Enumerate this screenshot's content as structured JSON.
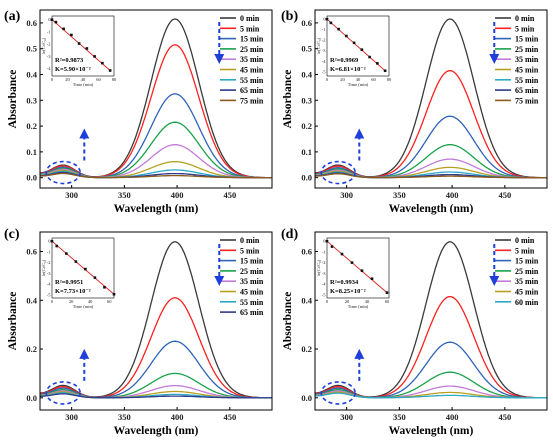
{
  "chart_data": [
    {
      "panel": "(a)",
      "type": "line",
      "xlabel": "Wavelength (nm)",
      "ylabel": "Absorbance",
      "xlim": [
        270,
        490
      ],
      "ylim": [
        -0.04,
        0.65
      ],
      "xticks": [
        300,
        350,
        400,
        450
      ],
      "yticks": [
        0.0,
        0.1,
        0.2,
        0.3,
        0.4,
        0.5,
        0.6
      ],
      "series": [
        {
          "name": "0 min",
          "color": "#3a3a3a",
          "peak": 0.615,
          "shoulder": 0.048
        },
        {
          "name": "5 min",
          "color": "#ff2020",
          "peak": 0.515,
          "shoulder": 0.045
        },
        {
          "name": "15 min",
          "color": "#2f63b8",
          "peak": 0.325,
          "shoulder": 0.04
        },
        {
          "name": "25 min",
          "color": "#19a14a",
          "peak": 0.215,
          "shoulder": 0.036
        },
        {
          "name": "35 min",
          "color": "#c37bd9",
          "peak": 0.128,
          "shoulder": 0.032
        },
        {
          "name": "45 min",
          "color": "#b8a020",
          "peak": 0.062,
          "shoulder": 0.028
        },
        {
          "name": "55 min",
          "color": "#2aa9c8",
          "peak": 0.03,
          "shoulder": 0.024
        },
        {
          "name": "65 min",
          "color": "#2e3a8a",
          "peak": 0.016,
          "shoulder": 0.02
        },
        {
          "name": "75 min",
          "color": "#8a5a1e",
          "peak": 0.008,
          "shoulder": 0.016
        }
      ],
      "inset": {
        "ylabel": "ln(Cₜ/C₀)",
        "xlabel": "Time (min)",
        "xticks": [
          0,
          20,
          40,
          60,
          80
        ],
        "xlim": [
          0,
          80
        ],
        "yticks": [
          0,
          -1,
          -2,
          -3,
          -4
        ],
        "ylim": [
          -4.6,
          0.3
        ],
        "points": [
          [
            0,
            0
          ],
          [
            5,
            -0.2
          ],
          [
            15,
            -0.75
          ],
          [
            25,
            -1.25
          ],
          [
            35,
            -1.95
          ],
          [
            45,
            -2.35
          ],
          [
            55,
            -3.0
          ],
          [
            65,
            -3.55
          ],
          [
            75,
            -4.15
          ]
        ],
        "r2": "R²=0.9873",
        "k": "K=5.90×10⁻²"
      }
    },
    {
      "panel": "(b)",
      "type": "line",
      "xlabel": "Wavelength (nm)",
      "ylabel": "Absorbance",
      "xlim": [
        270,
        490
      ],
      "ylim": [
        -0.04,
        0.65
      ],
      "xticks": [
        300,
        350,
        400,
        450
      ],
      "yticks": [
        0.0,
        0.1,
        0.2,
        0.3,
        0.4,
        0.5,
        0.6
      ],
      "series": [
        {
          "name": "0 min",
          "color": "#3a3a3a",
          "peak": 0.615,
          "shoulder": 0.048
        },
        {
          "name": "5 min",
          "color": "#ff2020",
          "peak": 0.415,
          "shoulder": 0.044
        },
        {
          "name": "15 min",
          "color": "#2f63b8",
          "peak": 0.238,
          "shoulder": 0.038
        },
        {
          "name": "25 min",
          "color": "#19a14a",
          "peak": 0.128,
          "shoulder": 0.033
        },
        {
          "name": "35 min",
          "color": "#c37bd9",
          "peak": 0.072,
          "shoulder": 0.029
        },
        {
          "name": "45 min",
          "color": "#b8a020",
          "peak": 0.04,
          "shoulder": 0.025
        },
        {
          "name": "55 min",
          "color": "#2aa9c8",
          "peak": 0.022,
          "shoulder": 0.021
        },
        {
          "name": "65 min",
          "color": "#2e3a8a",
          "peak": 0.012,
          "shoulder": 0.018
        },
        {
          "name": "75 min",
          "color": "#8a5a1e",
          "peak": 0.006,
          "shoulder": 0.015
        }
      ],
      "inset": {
        "ylabel": "ln(Cₜ/C₀)",
        "xlabel": "Time (min)",
        "xticks": [
          0,
          20,
          40,
          60,
          80
        ],
        "xlim": [
          0,
          80
        ],
        "yticks": [
          0,
          -1,
          -2,
          -3,
          -4,
          -5
        ],
        "ylim": [
          -5.4,
          0.3
        ],
        "points": [
          [
            0,
            0
          ],
          [
            5,
            -0.35
          ],
          [
            15,
            -0.95
          ],
          [
            25,
            -1.6
          ],
          [
            35,
            -2.25
          ],
          [
            45,
            -2.9
          ],
          [
            55,
            -3.6
          ],
          [
            65,
            -4.2
          ],
          [
            75,
            -4.9
          ]
        ],
        "r2": "R²=0.9969",
        "k": "K=6.81×10⁻²"
      }
    },
    {
      "panel": "(c)",
      "type": "line",
      "xlabel": "Wavelength (nm)",
      "ylabel": "Absorbance",
      "xlim": [
        270,
        490
      ],
      "ylim": [
        -0.05,
        0.68
      ],
      "xticks": [
        300,
        350,
        400,
        450
      ],
      "yticks": [
        0.0,
        0.2,
        0.4,
        0.6
      ],
      "series": [
        {
          "name": "0 min",
          "color": "#3a3a3a",
          "peak": 0.64,
          "shoulder": 0.05
        },
        {
          "name": "5 min",
          "color": "#ff2020",
          "peak": 0.41,
          "shoulder": 0.045
        },
        {
          "name": "15 min",
          "color": "#2f63b8",
          "peak": 0.232,
          "shoulder": 0.039
        },
        {
          "name": "25 min",
          "color": "#19a14a",
          "peak": 0.1,
          "shoulder": 0.033
        },
        {
          "name": "35 min",
          "color": "#c37bd9",
          "peak": 0.05,
          "shoulder": 0.028
        },
        {
          "name": "45 min",
          "color": "#b8a020",
          "peak": 0.026,
          "shoulder": 0.024
        },
        {
          "name": "55 min",
          "color": "#2aa9c8",
          "peak": 0.014,
          "shoulder": 0.02
        },
        {
          "name": "65 min",
          "color": "#2e3a8a",
          "peak": 0.007,
          "shoulder": 0.016
        }
      ],
      "inset": {
        "ylabel": "ln(Cₜ/C₀)",
        "xlabel": "Time (min)",
        "xticks": [
          0,
          20,
          40,
          60
        ],
        "xlim": [
          0,
          65
        ],
        "yticks": [
          0,
          -1,
          -2,
          -3,
          -4,
          -5
        ],
        "ylim": [
          -5.3,
          0.3
        ],
        "points": [
          [
            0,
            0
          ],
          [
            5,
            -0.45
          ],
          [
            15,
            -1.15
          ],
          [
            25,
            -1.9
          ],
          [
            35,
            -2.6
          ],
          [
            45,
            -3.4
          ],
          [
            55,
            -4.3
          ],
          [
            65,
            -4.95
          ]
        ],
        "r2": "R²=0.9951",
        "k": "K=7.73×10⁻²"
      }
    },
    {
      "panel": "(d)",
      "type": "line",
      "xlabel": "Wavelength (nm)",
      "ylabel": "Absorbance",
      "xlim": [
        270,
        490
      ],
      "ylim": [
        -0.05,
        0.68
      ],
      "xticks": [
        300,
        350,
        400,
        450
      ],
      "yticks": [
        0.0,
        0.2,
        0.4,
        0.6
      ],
      "series": [
        {
          "name": "0 min",
          "color": "#3a3a3a",
          "peak": 0.64,
          "shoulder": 0.05
        },
        {
          "name": "5 min",
          "color": "#ff2020",
          "peak": 0.415,
          "shoulder": 0.045
        },
        {
          "name": "15 min",
          "color": "#2f63b8",
          "peak": 0.228,
          "shoulder": 0.039
        },
        {
          "name": "25 min",
          "color": "#19a14a",
          "peak": 0.105,
          "shoulder": 0.033
        },
        {
          "name": "35 min",
          "color": "#c37bd9",
          "peak": 0.048,
          "shoulder": 0.028
        },
        {
          "name": "45 min",
          "color": "#b8a020",
          "peak": 0.022,
          "shoulder": 0.023
        },
        {
          "name": "60 min",
          "color": "#2aa9c8",
          "peak": 0.01,
          "shoulder": 0.019
        }
      ],
      "inset": {
        "ylabel": "ln(Cₜ/C₀)",
        "xlabel": "Time (min)",
        "xticks": [
          0,
          20,
          40,
          60
        ],
        "xlim": [
          0,
          62
        ],
        "yticks": [
          0,
          -1,
          -2,
          -3,
          -4,
          -5
        ],
        "ylim": [
          -5.3,
          0.3
        ],
        "points": [
          [
            0,
            0
          ],
          [
            5,
            -0.5
          ],
          [
            15,
            -1.2
          ],
          [
            25,
            -2.0
          ],
          [
            35,
            -2.75
          ],
          [
            45,
            -3.5
          ],
          [
            60,
            -4.8
          ]
        ],
        "r2": "R²=0.9934",
        "k": "K=8.25×10⁻²"
      }
    }
  ],
  "style": {
    "arrow_color": "#1f3fd8",
    "fit_line_color": "#e02020",
    "point_color": "#111111"
  }
}
